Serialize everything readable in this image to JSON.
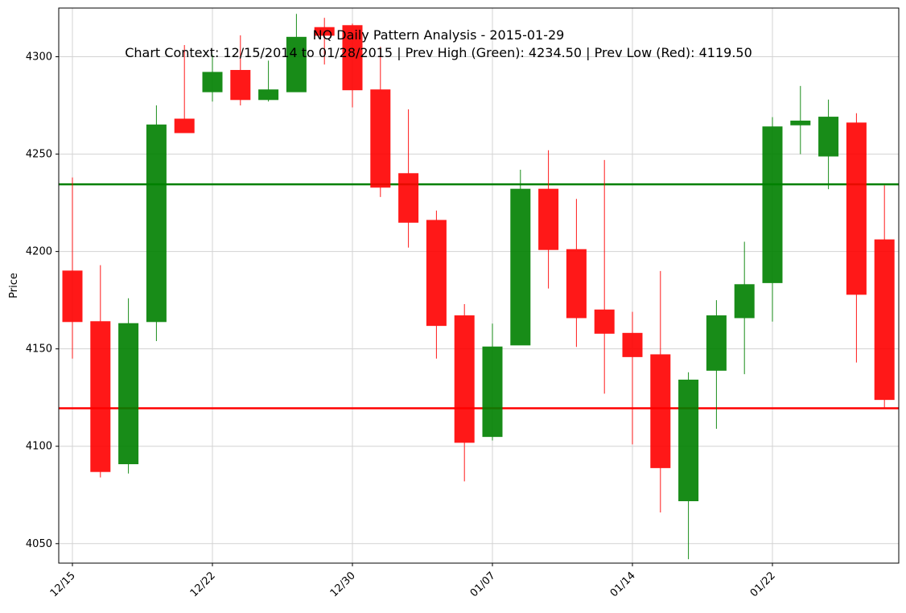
{
  "title_line1": "NQ Daily Pattern Analysis - 2015-01-29",
  "title_line2": "Chart Context: 12/15/2014 to 01/28/2015 | Prev High (Green): 4234.50 | Prev Low (Red): 4119.50",
  "colors": {
    "up": "#008000",
    "down": "#ff0000",
    "prev_high_line": "#008000",
    "prev_low_line": "#ff0000",
    "grid": "#d3d3d3"
  },
  "chart_data": {
    "type": "candlestick",
    "ylabel": "Price",
    "ylim": [
      4040,
      4325
    ],
    "yticks": [
      4050,
      4100,
      4150,
      4200,
      4250,
      4300
    ],
    "xticks": [
      {
        "index": 0,
        "label": "12/15"
      },
      {
        "index": 5,
        "label": "12/22"
      },
      {
        "index": 10,
        "label": "12/30"
      },
      {
        "index": 15,
        "label": "01/07"
      },
      {
        "index": 20,
        "label": "01/14"
      },
      {
        "index": 25,
        "label": "01/22"
      }
    ],
    "grid": true,
    "reference_lines": [
      {
        "name": "Prev High",
        "value": 4234.5,
        "color": "#008000"
      },
      {
        "name": "Prev Low",
        "value": 4119.5,
        "color": "#ff0000"
      }
    ],
    "candles": [
      {
        "open": 4190,
        "high": 4238,
        "low": 4145,
        "close": 4164
      },
      {
        "open": 4164,
        "high": 4193,
        "low": 4084,
        "close": 4087
      },
      {
        "open": 4091,
        "high": 4176,
        "low": 4086,
        "close": 4163
      },
      {
        "open": 4164,
        "high": 4275,
        "low": 4154,
        "close": 4265
      },
      {
        "open": 4268,
        "high": 4306,
        "low": 4261,
        "close": 4261
      },
      {
        "open": 4282,
        "high": 4301,
        "low": 4277,
        "close": 4292
      },
      {
        "open": 4293,
        "high": 4311,
        "low": 4275,
        "close": 4278
      },
      {
        "open": 4278,
        "high": 4298,
        "low": 4277,
        "close": 4283
      },
      {
        "open": 4282,
        "high": 4322,
        "low": 4282,
        "close": 4310
      },
      {
        "open": 4315,
        "high": 4320,
        "low": 4296,
        "close": 4311
      },
      {
        "open": 4316,
        "high": 4317,
        "low": 4274,
        "close": 4283
      },
      {
        "open": 4283,
        "high": 4305,
        "low": 4228,
        "close": 4233
      },
      {
        "open": 4240,
        "high": 4273,
        "low": 4202,
        "close": 4215
      },
      {
        "open": 4216,
        "high": 4221,
        "low": 4145,
        "close": 4162
      },
      {
        "open": 4167,
        "high": 4173,
        "low": 4082,
        "close": 4102
      },
      {
        "open": 4105,
        "high": 4163,
        "low": 4103,
        "close": 4151
      },
      {
        "open": 4152,
        "high": 4242,
        "low": 4152,
        "close": 4232
      },
      {
        "open": 4232,
        "high": 4252,
        "low": 4181,
        "close": 4201
      },
      {
        "open": 4201,
        "high": 4227,
        "low": 4151,
        "close": 4166
      },
      {
        "open": 4170,
        "high": 4247,
        "low": 4127,
        "close": 4158
      },
      {
        "open": 4158,
        "high": 4169,
        "low": 4101,
        "close": 4146
      },
      {
        "open": 4147,
        "high": 4190,
        "low": 4066,
        "close": 4089
      },
      {
        "open": 4072,
        "high": 4138,
        "low": 4042,
        "close": 4134
      },
      {
        "open": 4139,
        "high": 4175,
        "low": 4109,
        "close": 4167
      },
      {
        "open": 4166,
        "high": 4205,
        "low": 4137,
        "close": 4183
      },
      {
        "open": 4184,
        "high": 4269,
        "low": 4164,
        "close": 4264
      },
      {
        "open": 4265,
        "high": 4285,
        "low": 4250,
        "close": 4267
      },
      {
        "open": 4249,
        "high": 4278,
        "low": 4232,
        "close": 4269
      },
      {
        "open": 4266,
        "high": 4271,
        "low": 4143,
        "close": 4178
      },
      {
        "open": 4206,
        "high": 4234,
        "low": 4120,
        "close": 4124
      }
    ]
  }
}
